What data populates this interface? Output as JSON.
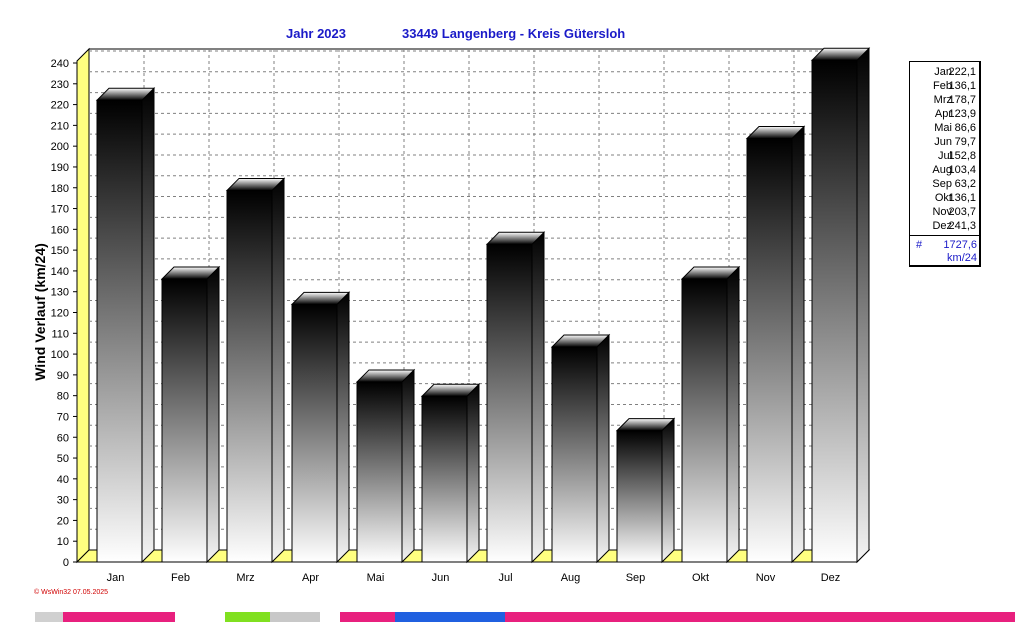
{
  "header": {
    "year_label": "Jahr  2023",
    "station_label": "33449 Langenberg - Kreis Gütersloh"
  },
  "legend": {
    "entries": [
      {
        "month": "Jan",
        "value": "222,1"
      },
      {
        "month": "Feb",
        "value": "136,1"
      },
      {
        "month": "Mrz",
        "value": "178,7"
      },
      {
        "month": "Apr",
        "value": "123,9"
      },
      {
        "month": "Mai",
        "value": "86,6"
      },
      {
        "month": "Jun",
        "value": "79,7"
      },
      {
        "month": "Jul",
        "value": "152,8"
      },
      {
        "month": "Aug",
        "value": "103,4"
      },
      {
        "month": "Sep",
        "value": "63,2"
      },
      {
        "month": "Okt",
        "value": "136,1"
      },
      {
        "month": "Nov",
        "value": "203,7"
      },
      {
        "month": "Dez",
        "value": "241,3"
      }
    ],
    "total_symbol": "#",
    "total": "1727,6",
    "unit": "km/24"
  },
  "footer": {
    "credit": "© WsWin32  07.05.2025"
  },
  "colors": {
    "title": "#1a1ac8",
    "floor": "#ffff80",
    "grid": "#808080",
    "footer": "#d00000",
    "taskbar": "#e8207e"
  },
  "chart_data": {
    "type": "bar",
    "categories": [
      "Jan",
      "Feb",
      "Mrz",
      "Apr",
      "Mai",
      "Jun",
      "Jul",
      "Aug",
      "Sep",
      "Okt",
      "Nov",
      "Dez"
    ],
    "values": [
      222.1,
      136.1,
      178.7,
      123.9,
      86.6,
      79.7,
      152.8,
      103.4,
      63.2,
      136.1,
      203.7,
      241.3
    ],
    "ylabel": "Wind Verlauf  (km/24)",
    "xlabel": "",
    "ylim": [
      0,
      240
    ],
    "yticks": [
      0,
      10,
      20,
      30,
      40,
      50,
      60,
      70,
      80,
      90,
      100,
      110,
      120,
      130,
      140,
      150,
      160,
      170,
      180,
      190,
      200,
      210,
      220,
      230,
      240
    ],
    "grid": true,
    "legend_position": "right"
  }
}
